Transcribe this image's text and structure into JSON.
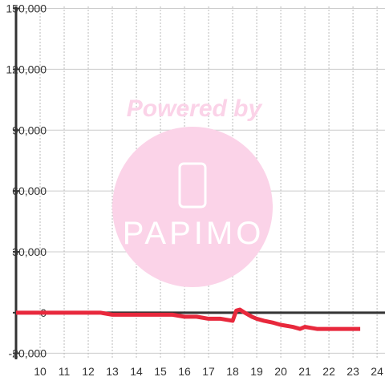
{
  "chart_data": {
    "type": "line",
    "watermark": [
      "Powered by",
      "PAPIMO"
    ],
    "x": [
      9,
      10,
      11,
      12,
      12.5,
      13,
      14,
      15,
      15.5,
      16,
      16.5,
      17,
      17.5,
      18,
      18.15,
      18.3,
      18.5,
      18.8,
      19,
      19.3,
      19.7,
      20,
      20.5,
      20.8,
      21,
      21.5,
      22,
      22.5,
      23,
      23.3
    ],
    "series": [
      {
        "color": "#e8283c",
        "values": [
          0,
          0,
          0,
          0,
          0,
          -1000,
          -1000,
          -1000,
          -1000,
          -2000,
          -2000,
          -3000,
          -3000,
          -4000,
          1000,
          1500,
          0,
          -2000,
          -3000,
          -4000,
          -5000,
          -6000,
          -7000,
          -8000,
          -7000,
          -8000,
          -8000,
          -8000,
          -8000,
          -8000
        ]
      }
    ],
    "xlim": [
      9,
      24.33
    ],
    "ylim": [
      -23000,
      151000
    ],
    "xticks": [
      10,
      11,
      12,
      13,
      14,
      15,
      16,
      17,
      18,
      19,
      20,
      21,
      22,
      23,
      24
    ],
    "yticks": [
      {
        "value": -20000,
        "label": "-20,000"
      },
      0,
      {
        "value": 30000,
        "label": "30,000"
      },
      {
        "value": 60000,
        "label": "60,000"
      },
      {
        "value": 90000,
        "label": "90,000"
      },
      {
        "value": 120000,
        "label": "120,000"
      },
      {
        "value": 150000,
        "label": "150,000"
      }
    ],
    "grid": true
  }
}
